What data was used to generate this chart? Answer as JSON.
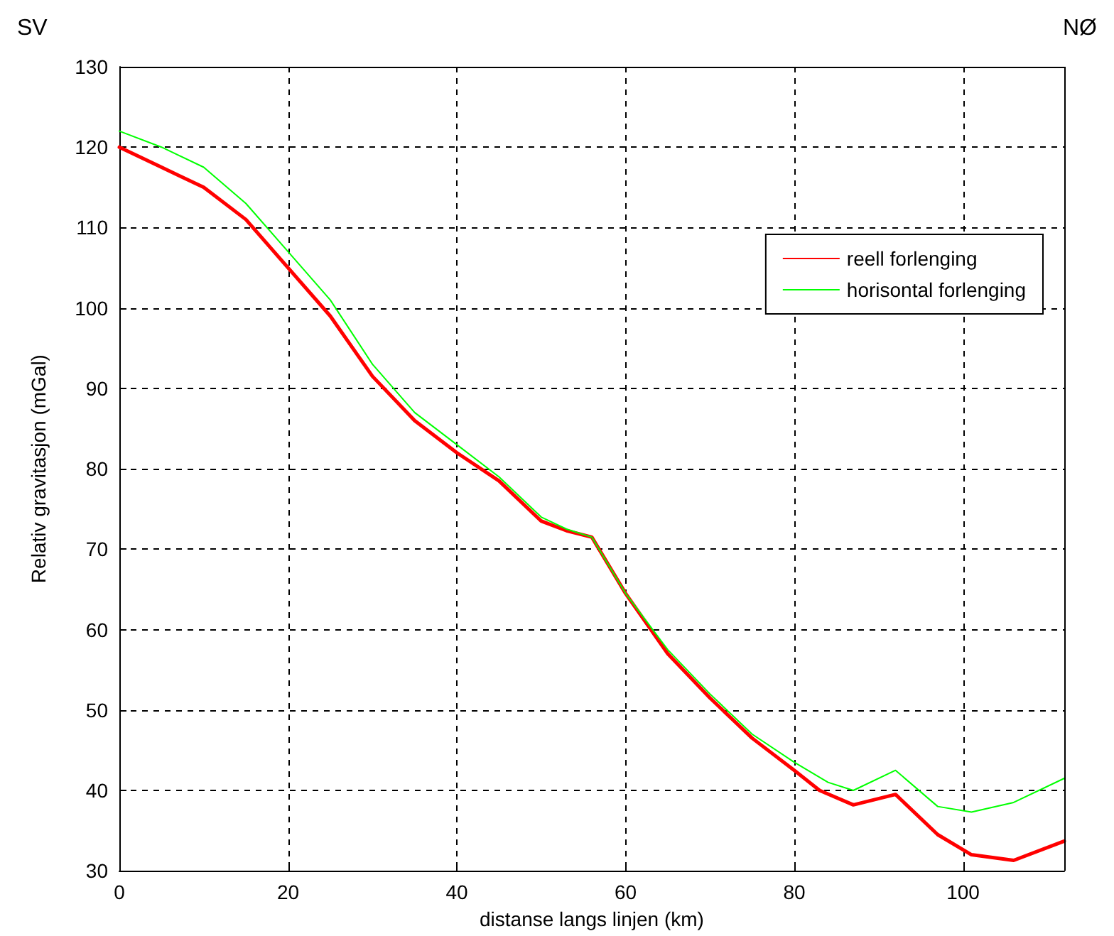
{
  "chart_data": {
    "type": "line",
    "xlabel": "distanse langs linjen (km)",
    "ylabel": "Relativ gravitasjon (mGal)",
    "annotations": [
      "SV",
      "NØ"
    ],
    "xlim": [
      0,
      112
    ],
    "xticks": [
      0,
      20,
      40,
      60,
      80,
      100
    ],
    "ylim": [
      30,
      130
    ],
    "yticks": [
      30,
      40,
      50,
      60,
      70,
      80,
      90,
      100,
      110,
      120,
      130
    ],
    "grid": true,
    "legend": "top right",
    "marker": "none",
    "line_style": "solid",
    "series": [
      {
        "name": "reell forlenging",
        "color": "#ff0000",
        "x": [
          0,
          5,
          10,
          15,
          20,
          25,
          30,
          35,
          40,
          45,
          50,
          53,
          56,
          60,
          65,
          70,
          75,
          80,
          83,
          87,
          92,
          97,
          101,
          106,
          112
        ],
        "values": [
          120,
          117.5,
          115,
          111,
          105,
          99,
          91.5,
          86,
          82,
          78.5,
          73.5,
          72.3,
          71.5,
          64.5,
          57,
          51.5,
          46.5,
          42.5,
          40,
          38.2,
          39.5,
          34.5,
          32,
          31.3,
          33.7
        ]
      },
      {
        "name": "horisontal forlenging",
        "color": "#00ff00",
        "x": [
          0,
          5,
          10,
          15,
          20,
          25,
          30,
          35,
          40,
          45,
          50,
          53,
          56,
          60,
          65,
          70,
          75,
          80,
          84,
          87,
          92,
          97,
          101,
          106,
          112
        ],
        "values": [
          122,
          120,
          117.5,
          113,
          107,
          101,
          93,
          87,
          83,
          79,
          74,
          72.5,
          71.5,
          64.5,
          57.5,
          52,
          47,
          43.5,
          41,
          40,
          42.5,
          38,
          37.3,
          38.5,
          41.5
        ]
      }
    ]
  }
}
